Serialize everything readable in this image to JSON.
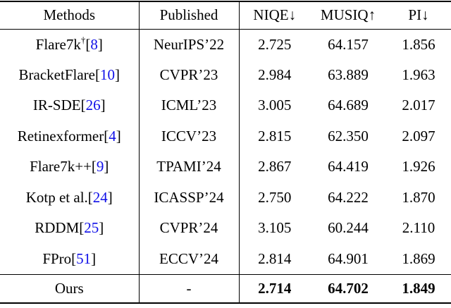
{
  "table": {
    "headers": {
      "methods": "Methods",
      "published": "Published",
      "niqe": "NIQE↓",
      "musiq": "MUSIQ↑",
      "pi": "PI↓"
    },
    "bracket_open": "[",
    "bracket_close": "]",
    "rows": [
      {
        "method": "Flare7k",
        "sup": "†",
        "cite": "8",
        "published": "NeurIPS’22",
        "niqe": "2.725",
        "musiq": "64.157",
        "pi": "1.856"
      },
      {
        "method": "BracketFlare",
        "cite": "10",
        "published": "CVPR’23",
        "niqe": "2.984",
        "musiq": "63.889",
        "pi": "1.963"
      },
      {
        "method": "IR-SDE",
        "cite": "26",
        "published": "ICML’23",
        "niqe": "3.005",
        "musiq": "64.689",
        "pi": "2.017"
      },
      {
        "method": "Retinexformer",
        "cite": "4",
        "published": "ICCV’23",
        "niqe": "2.815",
        "musiq": "62.350",
        "pi": "2.097"
      },
      {
        "method": "Flare7k++",
        "cite": "9",
        "published": "TPAMI’24",
        "niqe": "2.867",
        "musiq": "64.419",
        "pi": "1.926"
      },
      {
        "method": "Kotp et al.",
        "cite": "24",
        "published": "ICASSP’24",
        "niqe": "2.750",
        "musiq": "64.222",
        "pi": "1.870"
      },
      {
        "method": "RDDM",
        "cite": "25",
        "published": "CVPR’24",
        "niqe": "3.105",
        "musiq": "60.244",
        "pi": "2.110"
      },
      {
        "method": "FPro",
        "cite": "51",
        "published": "ECCV’24",
        "niqe": "2.814",
        "musiq": "64.901",
        "pi": "1.869"
      }
    ],
    "ours_row": {
      "method": "Ours",
      "published": "-",
      "niqe": "2.714",
      "musiq": "64.702",
      "pi": "1.849"
    },
    "colors": {
      "citation_blue": "#0F0FE8",
      "text": "#000000",
      "rule": "#000000",
      "background": "#FFFFFF"
    }
  }
}
